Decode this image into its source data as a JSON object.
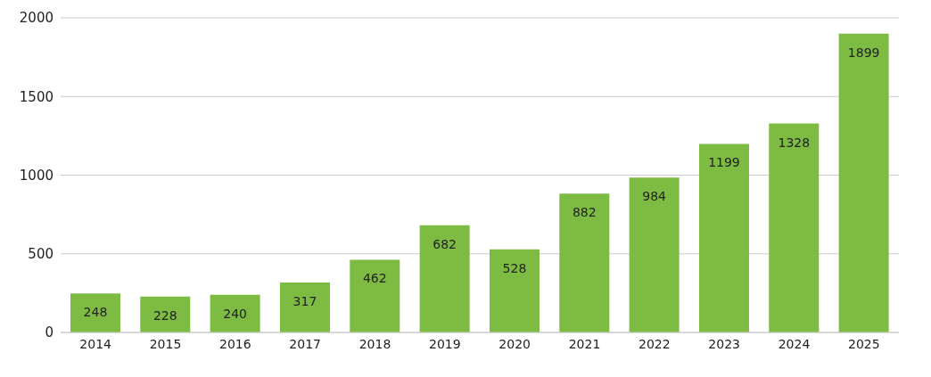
{
  "chart_data": {
    "type": "bar",
    "categories": [
      "2014",
      "2015",
      "2016",
      "2017",
      "2018",
      "2019",
      "2020",
      "2021",
      "2022",
      "2023",
      "2024",
      "2025"
    ],
    "values": [
      248,
      228,
      240,
      317,
      462,
      682,
      528,
      882,
      984,
      1199,
      1328,
      1899
    ],
    "color": "#7dbb42",
    "ylim": [
      0,
      2000
    ],
    "yticks": [
      0,
      500,
      1000,
      1500,
      2000
    ],
    "grid": "y",
    "data_labels": true
  }
}
